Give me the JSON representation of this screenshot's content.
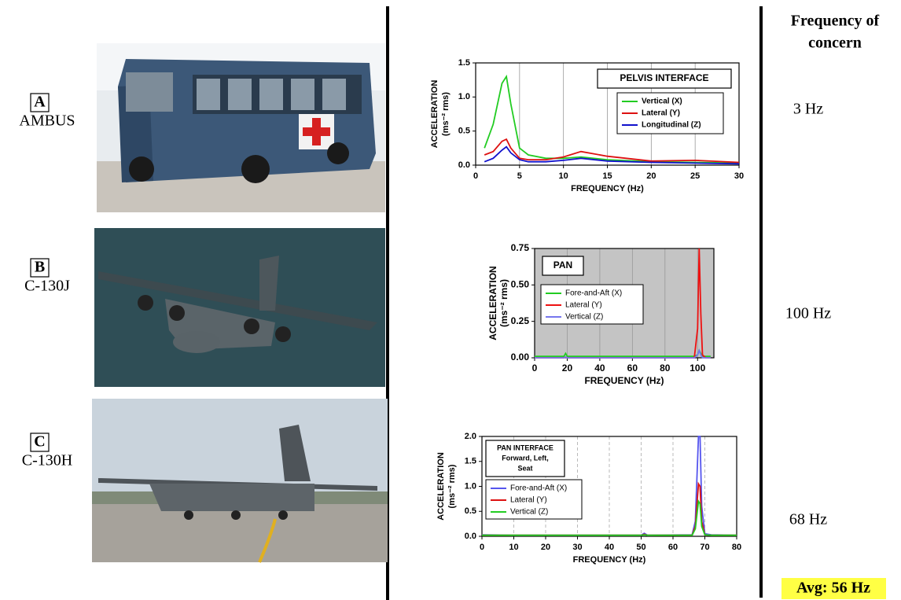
{
  "chart_data": [
    {
      "type": "line",
      "title": "PELVIS INTERFACE",
      "xlabel": "FREQUENCY (Hz)",
      "ylabel": [
        "ACCELERATION",
        "(ms⁻² rms)"
      ],
      "x": [
        1,
        2,
        3,
        3.5,
        4,
        5,
        6,
        8,
        10,
        12,
        15,
        20,
        25,
        30
      ],
      "series": [
        {
          "name": "Vertical (X)",
          "color": "#22cc22",
          "values": [
            0.25,
            0.6,
            1.2,
            1.3,
            0.9,
            0.25,
            0.15,
            0.1,
            0.1,
            0.12,
            0.08,
            0.05,
            0.04,
            0.03
          ]
        },
        {
          "name": "Lateral (Y)",
          "color": "#dd1111",
          "values": [
            0.15,
            0.2,
            0.35,
            0.38,
            0.25,
            0.1,
            0.08,
            0.08,
            0.12,
            0.2,
            0.13,
            0.06,
            0.07,
            0.04
          ]
        },
        {
          "name": "Longitudinal (Z)",
          "color": "#1111cc",
          "values": [
            0.05,
            0.1,
            0.22,
            0.27,
            0.18,
            0.08,
            0.05,
            0.05,
            0.07,
            0.1,
            0.06,
            0.04,
            0.03,
            0.02
          ]
        }
      ],
      "xlim": [
        0,
        30
      ],
      "ylim": [
        0,
        1.5
      ],
      "xticks": [
        0,
        5,
        10,
        15,
        20,
        25,
        30
      ],
      "yticks": [
        {
          "value": 0,
          "label": "0.0"
        },
        0.5,
        {
          "value": 1,
          "label": "1.0"
        },
        1.5
      ],
      "grid": "solid",
      "background": "#ffffff"
    },
    {
      "type": "line",
      "title": "PAN",
      "xlabel": "FREQUENCY (Hz)",
      "ylabel": [
        "ACCELERATION",
        "(ms⁻² rms)"
      ],
      "x": [
        0,
        18,
        19,
        20,
        40,
        60,
        98,
        100,
        101,
        102,
        103,
        105,
        108
      ],
      "series": [
        {
          "name": "Fore-and-Aft (X)",
          "color": "#22cc22",
          "values": [
            0.01,
            0.01,
            0.03,
            0.01,
            0.01,
            0.01,
            0.01,
            0.02,
            0.05,
            0.03,
            0.01,
            0.01,
            0.01
          ]
        },
        {
          "name": "Lateral (Y)",
          "color": "#ee1111",
          "values": [
            0,
            0,
            0.005,
            0,
            0,
            0,
            0,
            0.2,
            0.75,
            0.3,
            0.02,
            0,
            0
          ]
        },
        {
          "name": "Vertical (Z)",
          "color": "#7777ee",
          "values": [
            0,
            0,
            0.005,
            0,
            0,
            0,
            0,
            0.02,
            0.05,
            0.02,
            0,
            0,
            0
          ]
        }
      ],
      "xlim": [
        0,
        110
      ],
      "ylim": [
        0,
        0.75
      ],
      "xticks": [
        0,
        20,
        40,
        60,
        80,
        100
      ],
      "yticks": [
        {
          "value": 0,
          "label": "0.00"
        },
        0.25,
        {
          "value": 0.5,
          "label": "0.50"
        },
        0.75
      ],
      "grid": "solid",
      "background": "#c4c4c4"
    },
    {
      "type": "line",
      "title": [
        "PAN INTERFACE",
        "Forward, Left,",
        "Seat"
      ],
      "xlabel": "FREQUENCY (Hz)",
      "ylabel": [
        "ACCELERATION",
        "(ms⁻² rms)"
      ],
      "x": [
        0,
        10,
        20,
        50,
        51,
        52,
        66,
        67,
        68,
        68.5,
        69,
        70,
        72,
        80
      ],
      "series": [
        {
          "name": "Fore-and-Aft (X)",
          "color": "#5555ee",
          "values": [
            0.03,
            0.02,
            0.02,
            0.02,
            0.06,
            0.02,
            0.03,
            0.3,
            2.0,
            2.0,
            0.6,
            0.05,
            0.03,
            0.02
          ]
        },
        {
          "name": "Lateral (Y)",
          "color": "#dd1111",
          "values": [
            0.02,
            0.02,
            0.02,
            0.02,
            0.04,
            0.02,
            0.02,
            0.2,
            1.05,
            1.0,
            0.3,
            0.03,
            0.02,
            0.02
          ]
        },
        {
          "name": "Vertical (Z)",
          "color": "#22cc22",
          "values": [
            0.02,
            0.02,
            0.02,
            0.02,
            0.03,
            0.02,
            0.02,
            0.15,
            0.7,
            0.65,
            0.2,
            0.03,
            0.02,
            0.02
          ]
        }
      ],
      "xlim": [
        0,
        80
      ],
      "ylim": [
        0,
        2.0
      ],
      "xticks": [
        0,
        10,
        20,
        30,
        40,
        50,
        60,
        70,
        80
      ],
      "yticks": [
        {
          "value": 0,
          "label": "0.0"
        },
        0.5,
        {
          "value": 1,
          "label": "1.0"
        },
        1.5,
        {
          "value": 2,
          "label": "2.0"
        }
      ],
      "grid": "dashed",
      "background": "#ffffff"
    }
  ],
  "panels": [
    {
      "letter": "A",
      "name": "AMBUS",
      "frequency": "3 Hz"
    },
    {
      "letter": "B",
      "name": "C-130J",
      "frequency": "100 Hz"
    },
    {
      "letter": "C",
      "name": "C-130H",
      "frequency": "68 Hz"
    }
  ],
  "header": [
    "Frequency of",
    "concern"
  ],
  "average": "Avg: 56 Hz"
}
